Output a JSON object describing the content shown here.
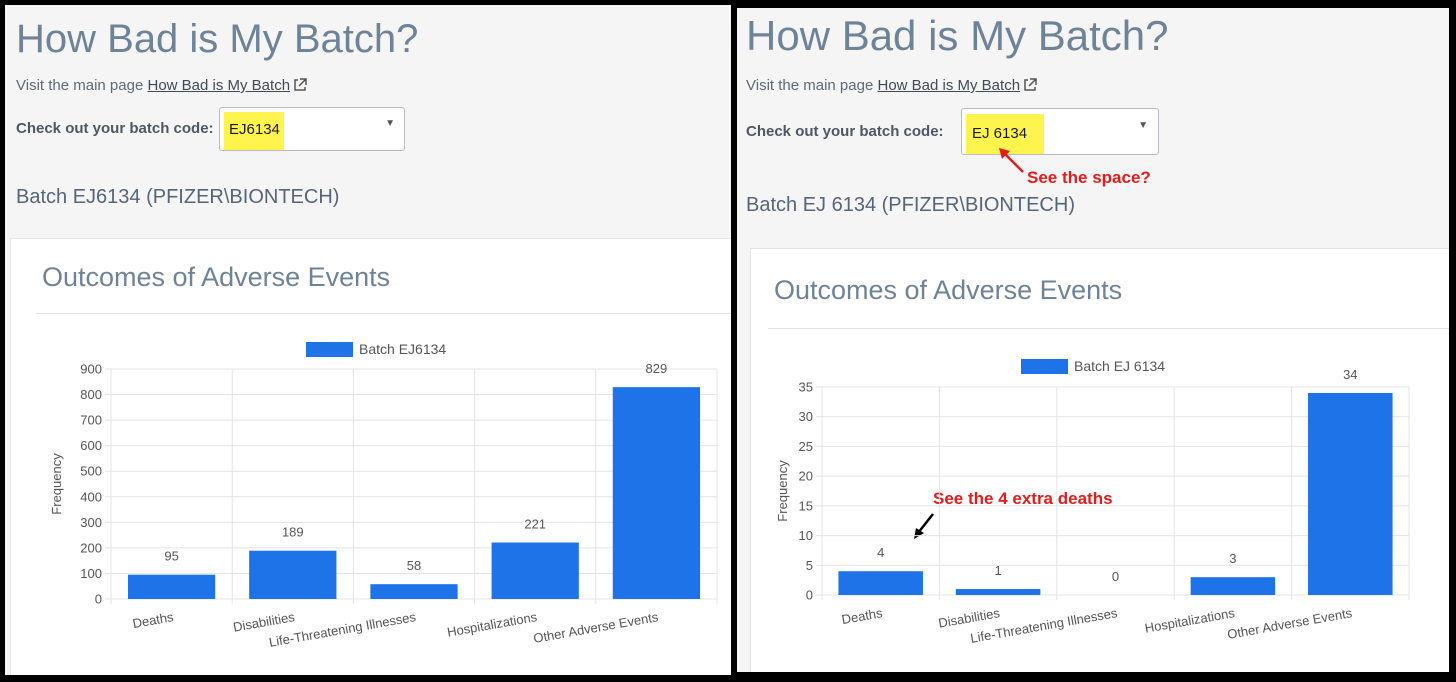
{
  "left": {
    "title": "How Bad is My Batch?",
    "visit_text": "Visit the main page",
    "visit_link": "How Bad is My Batch",
    "batch_label": "Check out your batch code:",
    "batch_value": "EJ6134",
    "batch_heading": "Batch EJ6134 (PFIZER\\BIONTECH)",
    "card_title": "Outcomes of Adverse Events",
    "legend": "Batch EJ6134",
    "ylabel": "Frequency"
  },
  "right": {
    "title": "How Bad is My Batch?",
    "visit_text": "Visit the main page",
    "visit_link": "How Bad is My Batch",
    "batch_label": "Check out your batch code:",
    "batch_value": "EJ 6134",
    "batch_heading": "Batch EJ 6134 (PFIZER\\BIONTECH)",
    "card_title": "Outcomes of Adverse Events",
    "legend": "Batch EJ 6134",
    "ylabel": "Frequency",
    "annotation_space": "See the space?",
    "annotation_deaths": "See the 4 extra deaths"
  },
  "chart_data": [
    {
      "type": "bar",
      "categories": [
        "Deaths",
        "Disabilities",
        "Life-Threatening Illnesses",
        "Hospitalizations",
        "Other Adverse Events"
      ],
      "series": [
        {
          "name": "Batch EJ6134",
          "values": [
            95,
            189,
            58,
            221,
            829
          ]
        }
      ],
      "ylabel": "Frequency",
      "ylim": [
        0,
        900
      ],
      "yticks": [
        0,
        100,
        200,
        300,
        400,
        500,
        600,
        700,
        800,
        900
      ],
      "grid": true,
      "legend": "top",
      "color": "#1e73e8"
    },
    {
      "type": "bar",
      "categories": [
        "Deaths",
        "Disabilities",
        "Life-Threatening Illnesses",
        "Hospitalizations",
        "Other Adverse Events"
      ],
      "series": [
        {
          "name": "Batch EJ 6134",
          "values": [
            4,
            1,
            0,
            3,
            34
          ]
        }
      ],
      "ylabel": "Frequency",
      "ylim": [
        0,
        35
      ],
      "yticks": [
        0,
        5,
        10,
        15,
        20,
        25,
        30,
        35
      ],
      "grid": true,
      "legend": "top",
      "color": "#1e73e8"
    }
  ]
}
